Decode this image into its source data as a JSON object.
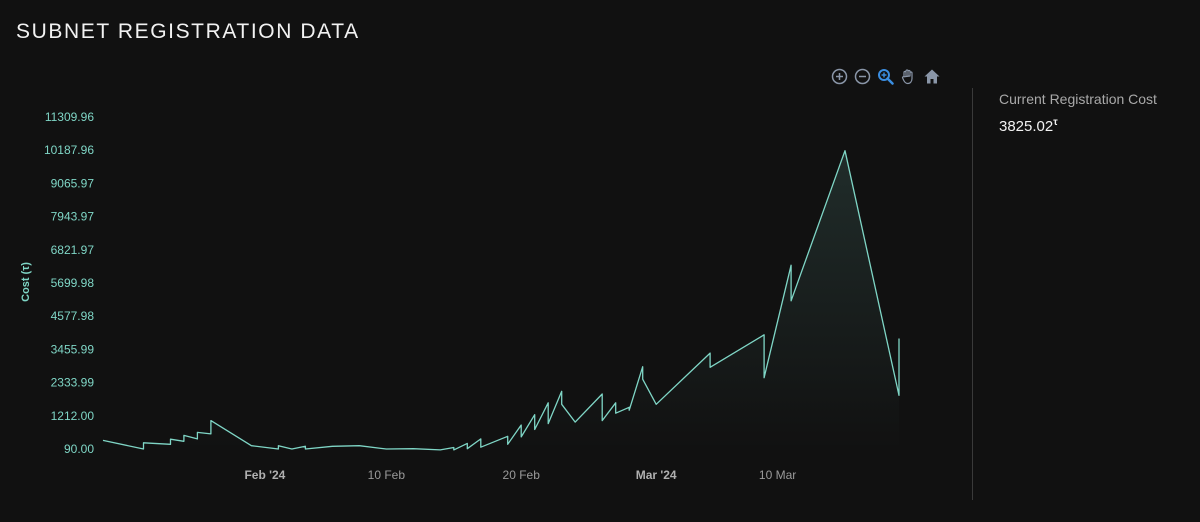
{
  "page": {
    "title": "SUBNET REGISTRATION DATA"
  },
  "toolbar": {
    "items": [
      {
        "icon": "zoom-in-icon"
      },
      {
        "icon": "zoom-out-icon"
      },
      {
        "icon": "zoom-select-icon"
      },
      {
        "icon": "pan-hand-icon"
      },
      {
        "icon": "reset-home-icon"
      }
    ]
  },
  "sidebar": {
    "label": "Current Registration Cost",
    "value": "3825.02",
    "unit": "τ"
  },
  "colors": {
    "background": "#111111",
    "line": "#7fd6c6",
    "axis_text": "#7fd6c6",
    "x_tick_text": "#9a9a9a",
    "toolbar_active": "#3a8de0",
    "toolbar_icon": "#8a96a8"
  },
  "chart_data": {
    "type": "area",
    "title": "",
    "ylabel": "Cost (τ)",
    "xlabel": "",
    "ylim": [
      90,
      11309.96
    ],
    "xlim": [
      "2024-01-20",
      "2024-03-19"
    ],
    "grid": false,
    "yticks": [
      "11309.96",
      "10187.96",
      "9065.97",
      "7943.97",
      "6821.97",
      "5699.98",
      "4577.98",
      "3455.99",
      "2333.99",
      "1212.00",
      "90.00"
    ],
    "xticks": [
      {
        "date": "2024-02-01",
        "label": "Feb '24",
        "bold": true
      },
      {
        "date": "2024-02-10",
        "label": "10 Feb",
        "bold": false
      },
      {
        "date": "2024-02-20",
        "label": "20 Feb",
        "bold": false
      },
      {
        "date": "2024-03-01",
        "label": "Mar '24",
        "bold": true
      },
      {
        "date": "2024-03-10",
        "label": "10 Mar",
        "bold": false
      }
    ],
    "series": [
      {
        "x": [
          "2024-01-20",
          "2024-01-23",
          "2024-01-23",
          "2024-01-25",
          "2024-01-25",
          "2024-01-26",
          "2024-01-26",
          "2024-01-27",
          "2024-01-27",
          "2024-01-28",
          "2024-01-28",
          "2024-01-31",
          "2024-02-02",
          "2024-02-02",
          "2024-02-03",
          "2024-02-04",
          "2024-02-04",
          "2024-02-06",
          "2024-02-08",
          "2024-02-10",
          "2024-02-12",
          "2024-02-14",
          "2024-02-15",
          "2024-02-15",
          "2024-02-16",
          "2024-02-16",
          "2024-02-17",
          "2024-02-17",
          "2024-02-19",
          "2024-02-19",
          "2024-02-20",
          "2024-02-20",
          "2024-02-21",
          "2024-02-21",
          "2024-02-22",
          "2024-02-22",
          "2024-02-23",
          "2024-02-23",
          "2024-02-24",
          "2024-02-26",
          "2024-02-26",
          "2024-02-27",
          "2024-02-27",
          "2024-02-28",
          "2024-02-28",
          "2024-02-29",
          "2024-02-29",
          "2024-03-01",
          "2024-03-05",
          "2024-03-05",
          "2024-03-09",
          "2024-03-09",
          "2024-03-11",
          "2024-03-11",
          "2024-03-15",
          "2024-03-19",
          "2024-03-19"
        ],
        "y": [
          380,
          90,
          300,
          250,
          420,
          350,
          550,
          430,
          650,
          600,
          1050,
          200,
          90,
          200,
          90,
          180,
          90,
          180,
          200,
          90,
          100,
          60,
          140,
          60,
          280,
          100,
          430,
          150,
          520,
          250,
          900,
          500,
          1250,
          750,
          1650,
          950,
          2040,
          1600,
          1000,
          1950,
          1050,
          1650,
          1300,
          1500,
          1400,
          2870,
          2450,
          1600,
          3330,
          2850,
          3950,
          2500,
          6300,
          5100,
          10170,
          1900,
          3825
        ]
      }
    ]
  }
}
